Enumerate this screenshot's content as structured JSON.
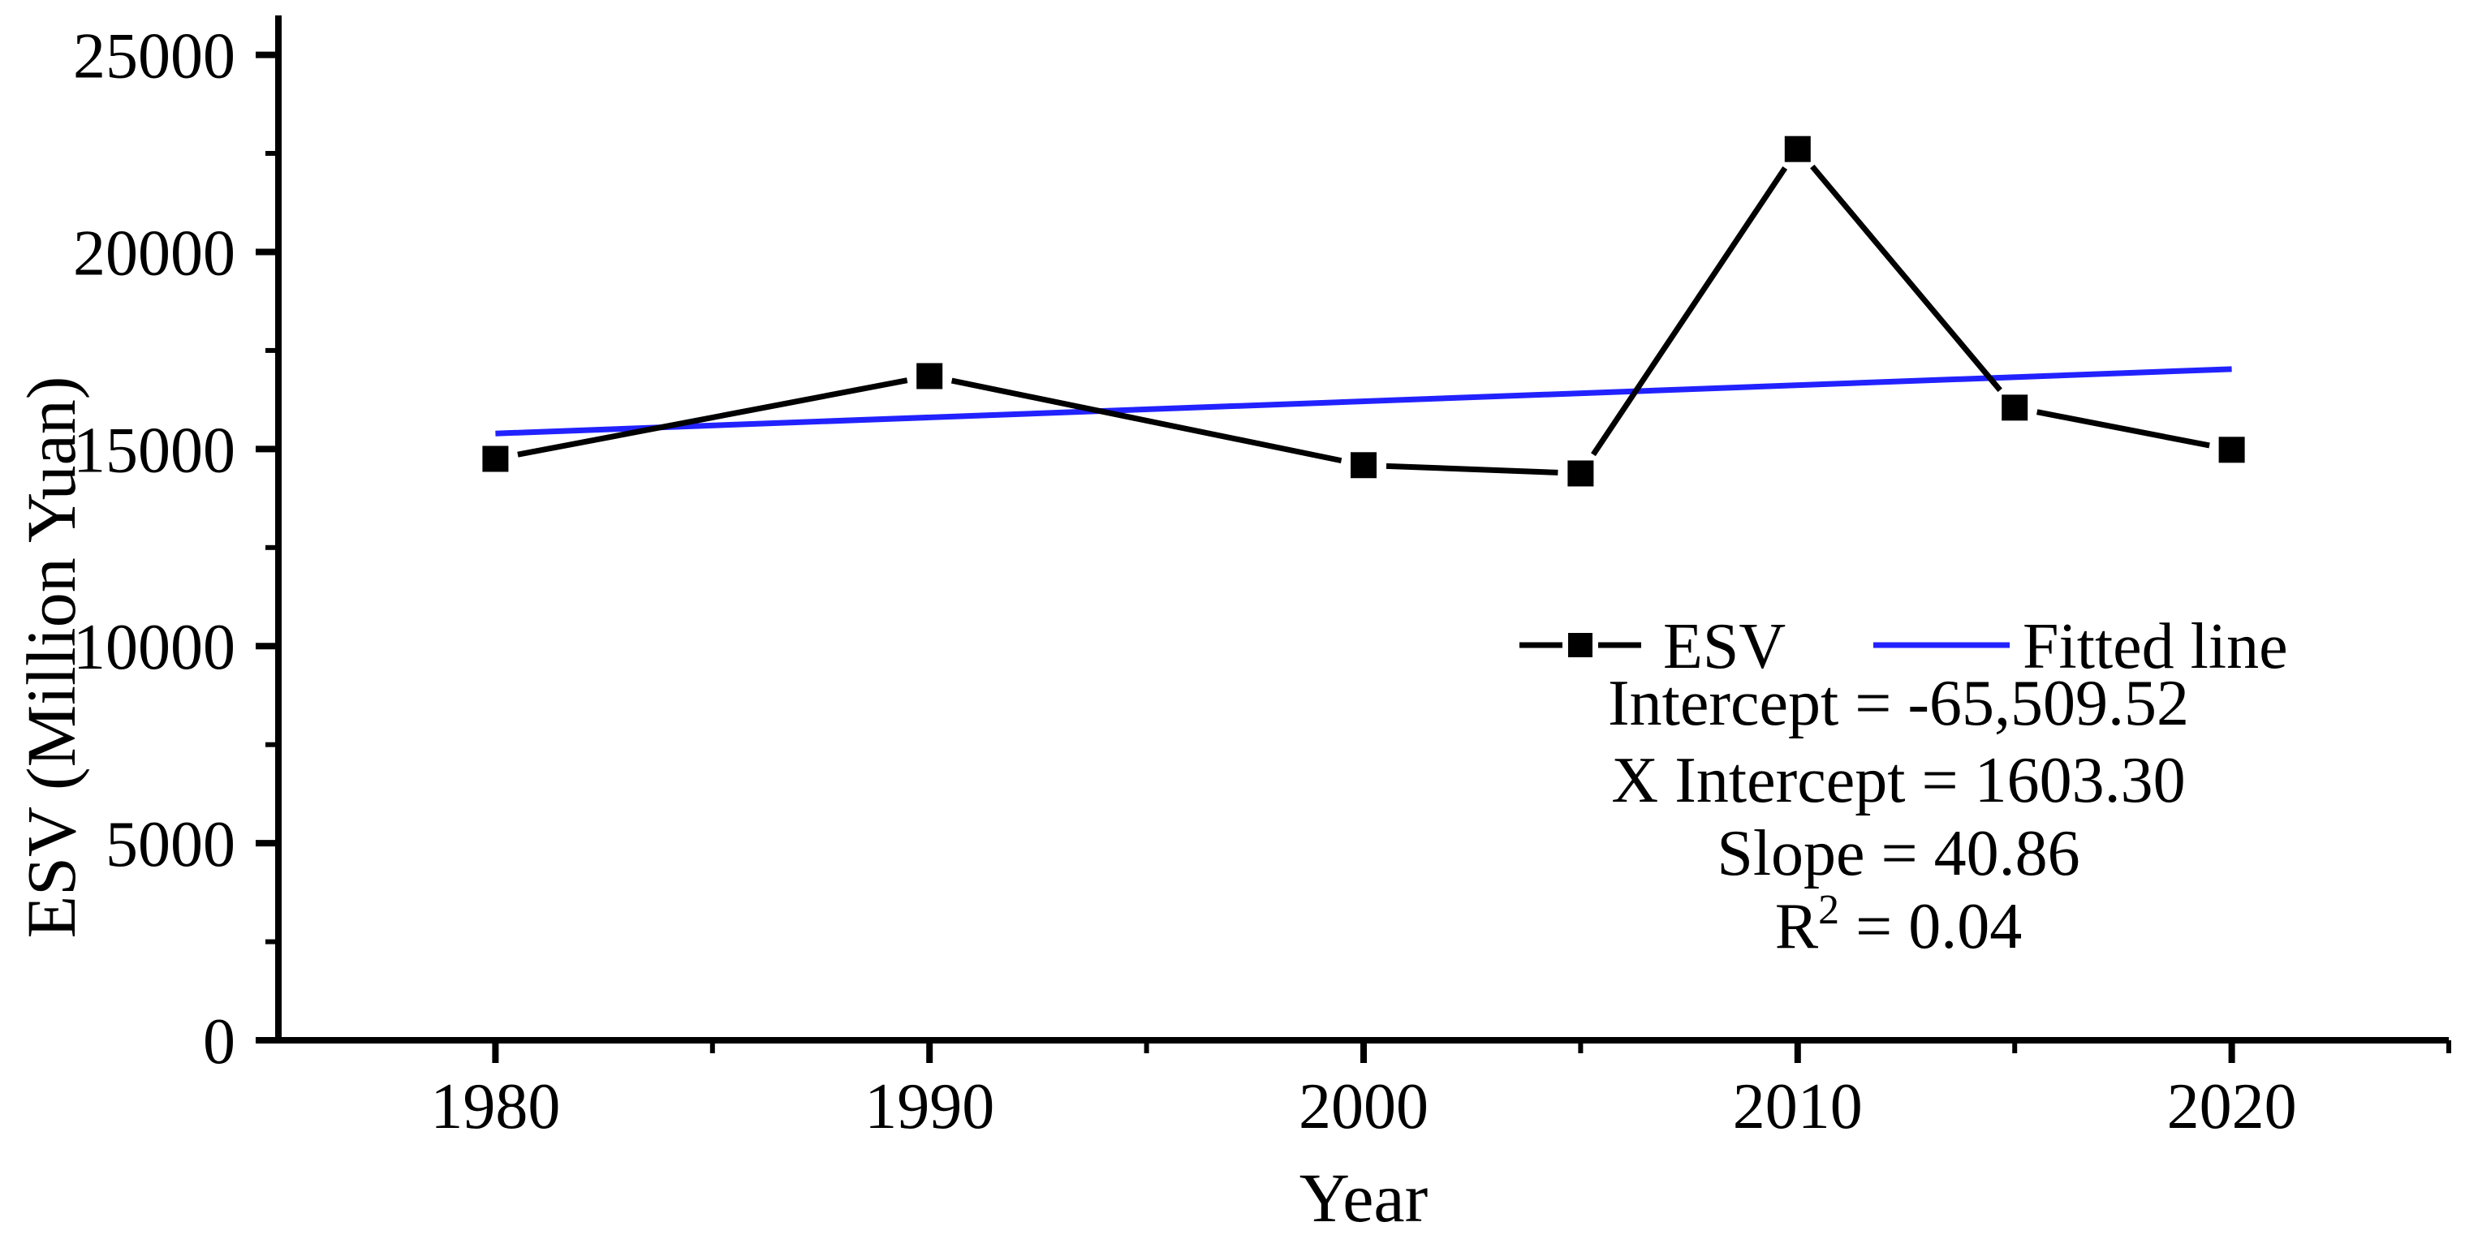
{
  "figure": {
    "x_axis_title": "Year",
    "y_axis_title": "ESV (Million Yuan)"
  },
  "legend": {
    "esv_label": "ESV",
    "fitted_label": "Fitted line"
  },
  "annotations": {
    "intercept": "Intercept = -65,509.52",
    "x_intercept": "X Intercept = 1603.30",
    "slope": "Slope = 40.86",
    "r2_base": "R",
    "r2_sup": "2",
    "r2_rest": " = 0.04"
  },
  "colors": {
    "esv_series": "#000000",
    "fitted_line": "#2222FF",
    "axis": "#000000",
    "text": "#000000",
    "background": "#ffffff"
  },
  "chart_data": {
    "type": "line",
    "title": "",
    "xlabel": "Year",
    "ylabel": "ESV (Million Yuan)",
    "x": [
      1980,
      1990,
      2000,
      2005,
      2010,
      2015,
      2020
    ],
    "series": [
      {
        "name": "ESV",
        "values": [
          14750,
          16850,
          14590,
          14380,
          22610,
          16050,
          14980
        ],
        "color": "#000000",
        "marker": "square",
        "line_style": "solid"
      },
      {
        "name": "Fitted line",
        "kind": "linear_fit",
        "slope": 40.86,
        "intercept": -65509.52,
        "x_intercept": 1603.3,
        "r_squared": 0.04,
        "x_range": [
          1980,
          2020
        ],
        "color": "#2222FF"
      }
    ],
    "x_axis": {
      "min": 1975,
      "max": 2025,
      "major_ticks": [
        1980,
        1990,
        2000,
        2010,
        2020
      ],
      "minor_ticks": [
        1985,
        1995,
        2005,
        2015,
        2025
      ]
    },
    "y_axis": {
      "min": 0,
      "max": 26000,
      "major_ticks": [
        0,
        5000,
        10000,
        15000,
        20000,
        25000
      ],
      "minor_ticks": [
        2500,
        7500,
        12500,
        17500,
        22500
      ]
    },
    "grid": false,
    "legend_position": "inside-right"
  }
}
